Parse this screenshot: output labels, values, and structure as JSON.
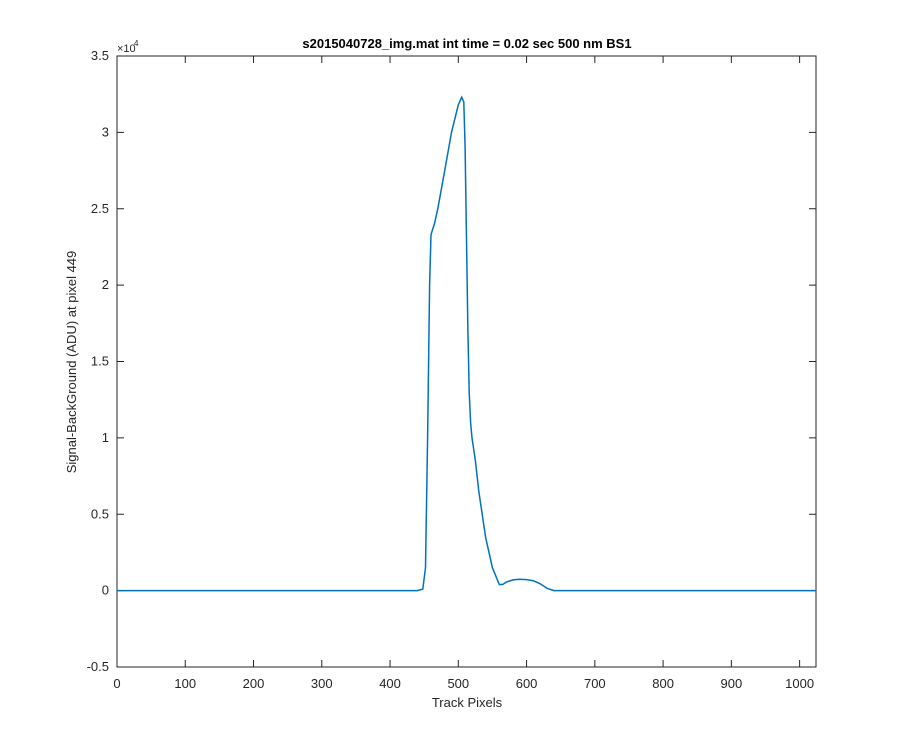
{
  "chart_data": {
    "type": "line",
    "title": "s2015040728_img.mat int time = 0.02 sec  500 nm BS1",
    "xlabel": "Track Pixels",
    "ylabel": "Signal-BackGround (ADU) at pixel 449",
    "xlim": [
      0,
      1024
    ],
    "ylim": [
      -5000,
      35000
    ],
    "x_ticks": [
      0,
      100,
      200,
      300,
      400,
      500,
      600,
      700,
      800,
      900,
      1000
    ],
    "y_ticks": [
      -5000,
      0,
      5000,
      10000,
      15000,
      20000,
      25000,
      30000,
      35000
    ],
    "y_tick_labels": [
      "-0.5",
      "0",
      "0.5",
      "1",
      "1.5",
      "2",
      "2.5",
      "3",
      "3.5"
    ],
    "y_exponent_label": "×10",
    "y_exponent_power": "4",
    "grid": false,
    "line_color": "#0072BD",
    "series": [
      {
        "x": [
          0,
          50,
          100,
          150,
          200,
          250,
          300,
          350,
          400,
          440,
          448,
          452,
          455,
          458,
          460,
          462,
          465,
          470,
          480,
          490,
          500,
          505,
          508,
          510,
          512,
          514,
          516,
          518,
          520,
          525,
          530,
          540,
          550,
          560,
          565,
          570,
          580,
          590,
          600,
          610,
          620,
          630,
          640,
          645,
          650,
          700,
          750,
          800,
          850,
          900,
          950,
          1000,
          1024
        ],
        "y": [
          0,
          0,
          0,
          0,
          0,
          0,
          0,
          0,
          0,
          0,
          100,
          1500,
          10000,
          20000,
          23300,
          23600,
          24000,
          25000,
          27500,
          30000,
          31800,
          32300,
          32000,
          29000,
          23000,
          17000,
          13000,
          11000,
          10000,
          8500,
          6500,
          3500,
          1500,
          400,
          400,
          550,
          700,
          750,
          720,
          650,
          450,
          150,
          0,
          0,
          0,
          0,
          0,
          0,
          0,
          0,
          0,
          0,
          0
        ]
      }
    ]
  }
}
